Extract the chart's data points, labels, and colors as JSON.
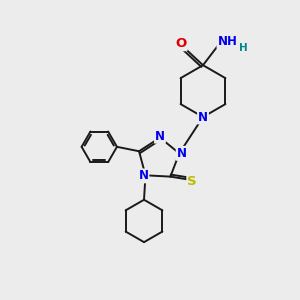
{
  "bg_color": "#ececec",
  "bond_color": "#1a1a1a",
  "N_color": "#0000ee",
  "O_color": "#dd0000",
  "S_color": "#bbbb00",
  "H_color": "#008888",
  "font_size_atom": 8.5,
  "fig_size": [
    3.0,
    3.0
  ],
  "dpi": 100,
  "xlim": [
    0,
    10
  ],
  "ylim": [
    0,
    10
  ]
}
